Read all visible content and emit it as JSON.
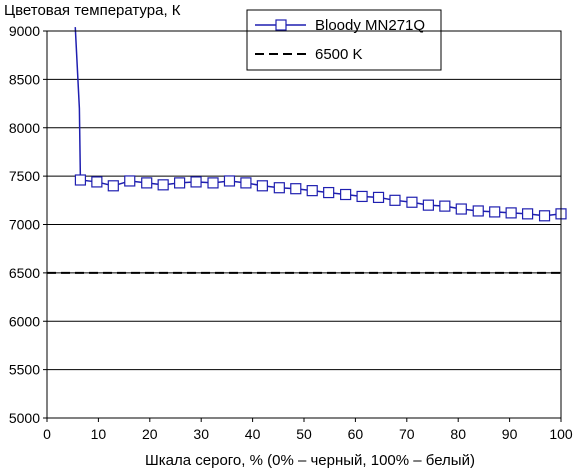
{
  "chart_data": {
    "type": "line",
    "ylabel": "Цветовая температура, К",
    "xlabel": "Шкала серого, % (0% – черный, 100% – белый)",
    "xlim": [
      0,
      100
    ],
    "ylim": [
      5000,
      9000
    ],
    "xticks": [
      0,
      10,
      20,
      30,
      40,
      50,
      60,
      70,
      80,
      90,
      100
    ],
    "yticks": [
      5000,
      5500,
      6000,
      6500,
      7000,
      7500,
      8000,
      8500,
      9000
    ],
    "grid": "horizontal",
    "legend_position": "top-right",
    "series": [
      {
        "name": "Bloody MN271Q",
        "color": "#1f1fb0",
        "line_style": "solid",
        "marker": "square",
        "x": [
          5.5,
          6.3,
          6.5,
          9.7,
          12.9,
          16.1,
          19.4,
          22.6,
          25.8,
          29.0,
          32.3,
          35.5,
          38.7,
          41.9,
          45.2,
          48.4,
          51.6,
          54.8,
          58.1,
          61.3,
          64.5,
          67.7,
          71.0,
          74.2,
          77.4,
          80.6,
          83.9,
          87.1,
          90.3,
          93.5,
          96.8,
          100
        ],
        "y": [
          9040,
          8200,
          7460,
          7440,
          7400,
          7450,
          7430,
          7410,
          7430,
          7440,
          7430,
          7450,
          7430,
          7400,
          7380,
          7370,
          7350,
          7330,
          7310,
          7290,
          7280,
          7250,
          7230,
          7200,
          7190,
          7160,
          7140,
          7130,
          7120,
          7110,
          7090,
          7110
        ],
        "markers_start_index": 2
      },
      {
        "name": "6500 K",
        "color": "#000000",
        "line_style": "dashed",
        "marker": "none",
        "x": [
          0,
          100
        ],
        "y": [
          6500,
          6500
        ]
      }
    ]
  }
}
